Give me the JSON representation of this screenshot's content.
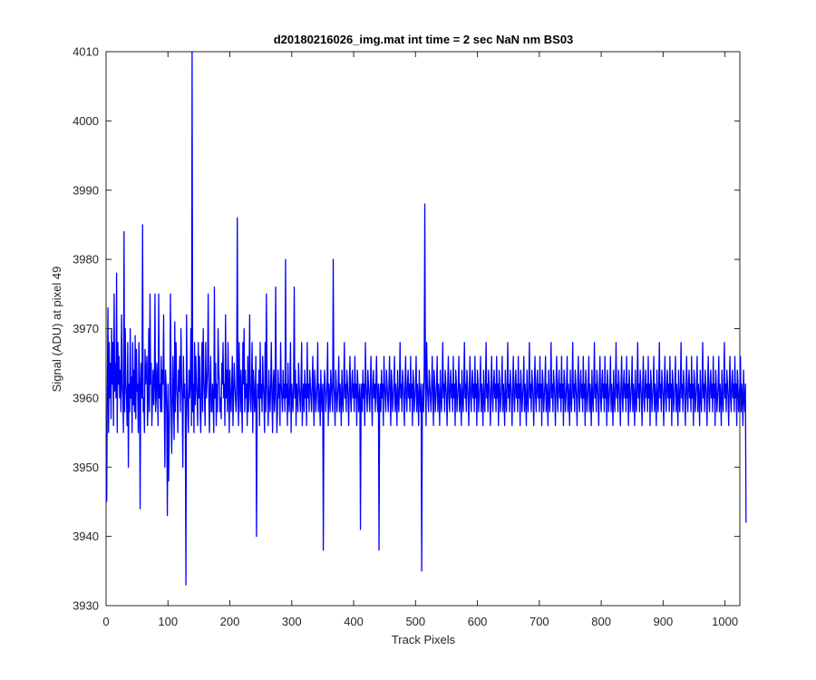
{
  "chart_data": {
    "type": "line",
    "title": "d20180216026_img.mat int time = 2 sec  NaN nm BS03",
    "xlabel": "Track Pixels",
    "ylabel": "Signal (ADU) at pixel 49",
    "xlim": [
      0,
      1024
    ],
    "ylim": [
      3930,
      4010
    ],
    "xticks": [
      0,
      100,
      200,
      300,
      400,
      500,
      600,
      700,
      800,
      900,
      1000
    ],
    "yticks": [
      3930,
      3940,
      3950,
      3960,
      3970,
      3980,
      3990,
      4000,
      4010
    ],
    "grid": false,
    "legend": "none",
    "line_color": "#0000ff",
    "series": [
      {
        "x_start": 1,
        "x_step": 1,
        "values": [
          3945,
          3961,
          3973,
          3955,
          3968,
          3960,
          3965,
          3957,
          3970,
          3962,
          3968,
          3956,
          3975,
          3961,
          3965,
          3960,
          3978,
          3955,
          3968,
          3962,
          3966,
          3960,
          3964,
          3958,
          3972,
          3962,
          3960,
          3955,
          3984,
          3958,
          3970,
          3962,
          3960,
          3956,
          3968,
          3950,
          3962,
          3958,
          3970,
          3960,
          3963,
          3955,
          3968,
          3959,
          3964,
          3958,
          3969,
          3957,
          3967,
          3961,
          3962,
          3955,
          3968,
          3964,
          3944,
          3962,
          3965,
          3960,
          3985,
          3958,
          3960,
          3955,
          3967,
          3962,
          3964,
          3966,
          3956,
          3960,
          3970,
          3958,
          3975,
          3962,
          3965,
          3956,
          3960,
          3964,
          3959,
          3962,
          3975,
          3958,
          3960,
          3965,
          3962,
          3956,
          3975,
          3960,
          3962,
          3958,
          3966,
          3958,
          3964,
          3962,
          3972,
          3960,
          3950,
          3964,
          3962,
          3958,
          3943,
          3962,
          3948,
          3955,
          3960,
          3975,
          3962,
          3952,
          3958,
          3966,
          3960,
          3954,
          3971,
          3958,
          3968,
          3962,
          3960,
          3955,
          3964,
          3961,
          3966,
          3958,
          3970,
          3963,
          3960,
          3950,
          3966,
          3960,
          3962,
          3958,
          3933,
          3972,
          3962,
          3958,
          3955,
          3964,
          3960,
          3962,
          3970,
          3956,
          4010,
          3958,
          3962,
          3955,
          3968,
          3959,
          3966,
          3962,
          3960,
          3956,
          3968,
          3960,
          3966,
          3958,
          3955,
          3962,
          3968,
          3958,
          3970,
          3963,
          3960,
          3956,
          3968,
          3960,
          3962,
          3964,
          3975,
          3960,
          3955,
          3962,
          3966,
          3958,
          3958,
          3962,
          3960,
          3955,
          3976,
          3960,
          3965,
          3956,
          3962,
          3958,
          3970,
          3964,
          3962,
          3958,
          3960,
          3957,
          3965,
          3962,
          3968,
          3960,
          3962,
          3956,
          3972,
          3960,
          3964,
          3958,
          3968,
          3962,
          3955,
          3964,
          3960,
          3958,
          3962,
          3966,
          3956,
          3960,
          3965,
          3962,
          3960,
          3958,
          3962,
          3986,
          3960,
          3956,
          3968,
          3962,
          3958,
          3964,
          3960,
          3955,
          3968,
          3962,
          3970,
          3958,
          3964,
          3960,
          3962,
          3956,
          3966,
          3958,
          3962,
          3972,
          3960,
          3958,
          3962,
          3968,
          3955,
          3964,
          3962,
          3958,
          3960,
          3966,
          3940,
          3958,
          3962,
          3960,
          3964,
          3956,
          3968,
          3960,
          3962,
          3958,
          3966,
          3962,
          3960,
          3955,
          3968,
          3958,
          3975,
          3962,
          3960,
          3956,
          3964,
          3960,
          3958,
          3962,
          3968,
          3960,
          3955,
          3962,
          3964,
          3958,
          3960,
          3976,
          3962,
          3955,
          3958,
          3964,
          3960,
          3962,
          3956,
          3968,
          3962,
          3960,
          3958,
          3964,
          3960,
          3962,
          3958,
          3980,
          3960,
          3962,
          3956,
          3965,
          3960,
          3958,
          3962,
          3968,
          3955,
          3962,
          3960,
          3958,
          3962,
          3976,
          3960,
          3964,
          3956,
          3962,
          3960,
          3958,
          3965,
          3962,
          3960,
          3958,
          3962,
          3968,
          3956,
          3960,
          3962,
          3958,
          3964,
          3960,
          3962,
          3956,
          3968,
          3960,
          3962,
          3958,
          3964,
          3962,
          3960,
          3958,
          3962,
          3966,
          3960,
          3956,
          3964,
          3962,
          3958,
          3960,
          3962,
          3968,
          3958,
          3962,
          3960,
          3956,
          3964,
          3960,
          3958,
          3962,
          3938,
          3960,
          3964,
          3962,
          3958,
          3960,
          3962,
          3968,
          3956,
          3962,
          3960,
          3958,
          3964,
          3962,
          3960,
          3958,
          3980,
          3962,
          3960,
          3956,
          3964,
          3962,
          3958,
          3960,
          3962,
          3966,
          3958,
          3962,
          3960,
          3956,
          3964,
          3960,
          3958,
          3962,
          3968,
          3960,
          3962,
          3958,
          3964,
          3962,
          3960,
          3956,
          3962,
          3966,
          3960,
          3958,
          3962,
          3964,
          3960,
          3962,
          3958,
          3966,
          3960,
          3962,
          3956,
          3964,
          3962,
          3958,
          3960,
          3962,
          3941,
          3960,
          3962,
          3958,
          3964,
          3960,
          3962,
          3956,
          3968,
          3962,
          3960,
          3958,
          3964,
          3962,
          3960,
          3958,
          3962,
          3966,
          3960,
          3956,
          3962,
          3964,
          3960,
          3962,
          3958,
          3962,
          3966,
          3960,
          3958,
          3962,
          3938,
          3960,
          3962,
          3958,
          3964,
          3960,
          3962,
          3956,
          3966,
          3962,
          3960,
          3958,
          3964,
          3962,
          3960,
          3958,
          3962,
          3966,
          3960,
          3956,
          3964,
          3962,
          3958,
          3960,
          3962,
          3966,
          3958,
          3962,
          3960,
          3956,
          3964,
          3960,
          3958,
          3962,
          3968,
          3960,
          3962,
          3958,
          3964,
          3962,
          3960,
          3956,
          3962,
          3966,
          3960,
          3958,
          3962,
          3964,
          3960,
          3962,
          3958,
          3966,
          3960,
          3962,
          3956,
          3964,
          3962,
          3958,
          3960,
          3962,
          3966,
          3958,
          3962,
          3960,
          3956,
          3964,
          3960,
          3958,
          3962,
          3935,
          3960,
          3962,
          3958,
          3964,
          3988,
          3962,
          3956,
          3968,
          3962,
          3960,
          3958,
          3964,
          3962,
          3960,
          3958,
          3962,
          3966,
          3960,
          3956,
          3964,
          3962,
          3958,
          3960,
          3962,
          3966,
          3958,
          3962,
          3960,
          3956,
          3964,
          3960,
          3958,
          3962,
          3968,
          3960,
          3962,
          3958,
          3964,
          3962,
          3960,
          3956,
          3962,
          3966,
          3960,
          3958,
          3962,
          3964,
          3960,
          3962,
          3958,
          3966,
          3960,
          3962,
          3956,
          3964,
          3962,
          3958,
          3960,
          3962,
          3966,
          3958,
          3962,
          3960,
          3956,
          3964,
          3960,
          3958,
          3962,
          3968,
          3960,
          3962,
          3958,
          3964,
          3962,
          3960,
          3956,
          3962,
          3966,
          3960,
          3958,
          3962,
          3964,
          3960,
          3962,
          3958,
          3966,
          3960,
          3962,
          3956,
          3964,
          3962,
          3958,
          3960,
          3962,
          3966,
          3958,
          3962,
          3960,
          3956,
          3964,
          3960,
          3958,
          3962,
          3968,
          3960,
          3962,
          3958,
          3964,
          3962,
          3960,
          3956,
          3962,
          3966,
          3960,
          3958,
          3962,
          3964,
          3960,
          3962,
          3958,
          3966,
          3960,
          3962,
          3956,
          3964,
          3962,
          3958,
          3960,
          3962,
          3966,
          3958,
          3962,
          3960,
          3956,
          3964,
          3960,
          3958,
          3962,
          3968,
          3960,
          3962,
          3958,
          3964,
          3962,
          3960,
          3956,
          3962,
          3966,
          3960,
          3958,
          3962,
          3964,
          3960,
          3962,
          3958,
          3966,
          3960,
          3962,
          3956,
          3964,
          3962,
          3958,
          3960,
          3962,
          3966,
          3958,
          3962,
          3960,
          3956,
          3964,
          3960,
          3958,
          3962,
          3968,
          3960,
          3962,
          3958,
          3964,
          3962,
          3960,
          3956,
          3962,
          3966,
          3960,
          3958,
          3962,
          3964,
          3960,
          3962,
          3958,
          3966,
          3960,
          3962,
          3956,
          3964,
          3962,
          3958,
          3960,
          3962,
          3966,
          3958,
          3962,
          3960,
          3956,
          3964,
          3960,
          3958,
          3962,
          3968,
          3960,
          3962,
          3958,
          3964,
          3962,
          3960,
          3956,
          3962,
          3966,
          3960,
          3958,
          3962,
          3964,
          3960,
          3962,
          3958,
          3966,
          3960,
          3962,
          3956,
          3964,
          3962,
          3958,
          3960,
          3962,
          3966,
          3958,
          3962,
          3960,
          3956,
          3964,
          3960,
          3958,
          3962,
          3968,
          3960,
          3962,
          3958,
          3964,
          3962,
          3960,
          3956,
          3962,
          3966,
          3960,
          3958,
          3962,
          3964,
          3960,
          3962,
          3958,
          3966,
          3960,
          3962,
          3956,
          3964,
          3962,
          3958,
          3960,
          3962,
          3966,
          3958,
          3962,
          3960,
          3956,
          3964,
          3960,
          3958,
          3962,
          3968,
          3960,
          3962,
          3958,
          3964,
          3962,
          3960,
          3956,
          3962,
          3966,
          3960,
          3958,
          3962,
          3964,
          3960,
          3962,
          3958,
          3966,
          3960,
          3962,
          3956,
          3964,
          3962,
          3958,
          3960,
          3962,
          3966,
          3958,
          3962,
          3960,
          3956,
          3964,
          3960,
          3958,
          3962,
          3968,
          3960,
          3962,
          3958,
          3964,
          3962,
          3960,
          3956,
          3962,
          3966,
          3960,
          3958,
          3962,
          3964,
          3960,
          3962,
          3958,
          3966,
          3960,
          3962,
          3956,
          3964,
          3962,
          3958,
          3960,
          3962,
          3966,
          3958,
          3962,
          3960,
          3956,
          3964,
          3960,
          3958,
          3962,
          3968,
          3960,
          3962,
          3958,
          3964,
          3962,
          3960,
          3956,
          3962,
          3966,
          3960,
          3958,
          3962,
          3964,
          3960,
          3962,
          3958,
          3966,
          3960,
          3962,
          3956,
          3964,
          3962,
          3958,
          3960,
          3962,
          3966,
          3958,
          3962,
          3960,
          3956,
          3964,
          3960,
          3958,
          3962,
          3968,
          3960,
          3962,
          3958,
          3964,
          3962,
          3960,
          3956,
          3962,
          3966,
          3960,
          3958,
          3962,
          3964,
          3960,
          3962,
          3958,
          3966,
          3960,
          3962,
          3956,
          3964,
          3962,
          3958,
          3960,
          3962,
          3966,
          3958,
          3962,
          3960,
          3956,
          3964,
          3960,
          3958,
          3962,
          3968,
          3960,
          3962,
          3958,
          3964,
          3962,
          3960,
          3956,
          3962,
          3966,
          3960,
          3958,
          3962,
          3964,
          3960,
          3962,
          3958,
          3966,
          3960,
          3962,
          3956,
          3964,
          3962,
          3958,
          3960,
          3962,
          3966,
          3958,
          3962,
          3960,
          3956,
          3964,
          3960,
          3958,
          3962,
          3968,
          3960,
          3962,
          3958,
          3964,
          3962,
          3960,
          3956,
          3962,
          3966,
          3960,
          3958,
          3962,
          3964,
          3960,
          3962,
          3958,
          3966,
          3960,
          3962,
          3956,
          3964,
          3962,
          3958,
          3960,
          3962,
          3966,
          3958,
          3962,
          3960,
          3956,
          3964,
          3960,
          3958,
          3962,
          3968,
          3960,
          3962,
          3958,
          3964,
          3962,
          3960,
          3956,
          3962,
          3966,
          3960,
          3958,
          3962,
          3964,
          3960,
          3962,
          3958,
          3966,
          3960,
          3962,
          3956,
          3964,
          3962,
          3958,
          3960,
          3962,
          3966,
          3958,
          3962,
          3960,
          3956,
          3964,
          3960,
          3958,
          3962,
          3942
        ]
      }
    ]
  }
}
